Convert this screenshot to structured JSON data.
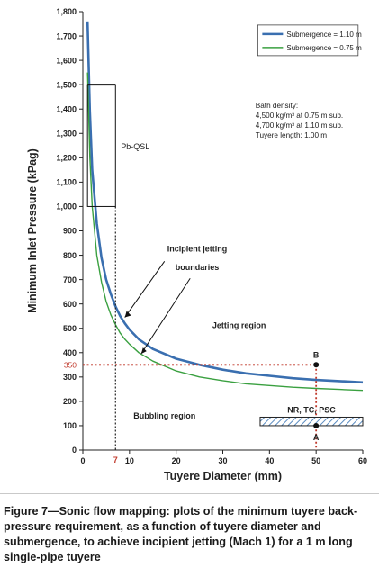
{
  "chart_data": {
    "type": "line",
    "xlabel": "Tuyere Diameter (mm)",
    "ylabel": "Minimum Inlet Pressure (kPag)",
    "xlim": [
      0,
      60
    ],
    "ylim": [
      0,
      1800
    ],
    "x_ticks": [
      0,
      10,
      20,
      30,
      40,
      50,
      60
    ],
    "y_ticks": [
      0,
      100,
      200,
      300,
      400,
      500,
      600,
      700,
      800,
      900,
      1000,
      1100,
      1200,
      1300,
      1400,
      1500,
      1600,
      1700,
      1800
    ],
    "tick_labels_x": [
      "0",
      "10",
      "20",
      "30",
      "40",
      "50",
      "60"
    ],
    "tick_labels_y": [
      "0",
      "100",
      "200",
      "300",
      "400",
      "500",
      "600",
      "700",
      "800",
      "900",
      "1,000",
      "1,100",
      "1,200",
      "1,300",
      "1,400",
      "1,500",
      "1,600",
      "1,700",
      "1,800"
    ],
    "grid": false,
    "legend_position": "top-right",
    "series": [
      {
        "name": "Submergence = 1.10 m",
        "color": "#3a6fb0",
        "points": [
          [
            1,
            1760
          ],
          [
            1.5,
            1390
          ],
          [
            2,
            1150
          ],
          [
            3,
            930
          ],
          [
            4,
            790
          ],
          [
            5,
            700
          ],
          [
            6,
            640
          ],
          [
            7,
            590
          ],
          [
            8,
            550
          ],
          [
            9,
            520
          ],
          [
            10,
            495
          ],
          [
            12,
            455
          ],
          [
            15,
            415
          ],
          [
            20,
            375
          ],
          [
            25,
            350
          ],
          [
            30,
            330
          ],
          [
            35,
            315
          ],
          [
            40,
            305
          ],
          [
            45,
            295
          ],
          [
            50,
            288
          ],
          [
            55,
            283
          ],
          [
            60,
            278
          ]
        ]
      },
      {
        "name": "Submergence = 0.75 m",
        "color": "#3aa040",
        "points": [
          [
            1,
            1550
          ],
          [
            1.5,
            1200
          ],
          [
            2,
            1000
          ],
          [
            3,
            800
          ],
          [
            4,
            690
          ],
          [
            5,
            610
          ],
          [
            6,
            555
          ],
          [
            7,
            515
          ],
          [
            8,
            480
          ],
          [
            9,
            455
          ],
          [
            10,
            435
          ],
          [
            12,
            400
          ],
          [
            15,
            365
          ],
          [
            20,
            325
          ],
          [
            25,
            300
          ],
          [
            30,
            285
          ],
          [
            35,
            272
          ],
          [
            40,
            265
          ],
          [
            45,
            258
          ],
          [
            50,
            253
          ],
          [
            55,
            249
          ],
          [
            60,
            245
          ]
        ]
      }
    ],
    "annotations": {
      "bath_density_lines": [
        "Bath density:",
        "4,500 kg/m³ at 0.75 m sub.",
        "4,700 kg/m³ at 1.10 m sub.",
        "Tuyere length: 1.00 m"
      ],
      "pbqsl_label": "Pb-QSL",
      "pbqsl_box": {
        "x": [
          1,
          7
        ],
        "y": [
          1000,
          1500
        ]
      },
      "incipient_label_lines": [
        "Incipient jetting",
        "boundaries"
      ],
      "jetting_label": "Jetting region",
      "bubbling_label": "Bubbling region",
      "nr_label": "NR, TC, PSC",
      "nr_box": {
        "x": [
          38,
          60
        ],
        "y": [
          100,
          135
        ]
      },
      "point_b": {
        "label": "B",
        "x": 50,
        "y": 350
      },
      "point_a": {
        "label": "A",
        "x": 50,
        "y": 100
      },
      "ref_x_label": "7",
      "ref_x_value": 7,
      "ref_y_label": "350",
      "ref_y_value": 350
    }
  },
  "caption": "Figure 7—Sonic flow mapping: plots of the minimum tuyere back-pressure requirement, as a function of tuyere diameter and submergence, to achieve incipient jetting (Mach 1) for a 1 m long single-pipe tuyere"
}
